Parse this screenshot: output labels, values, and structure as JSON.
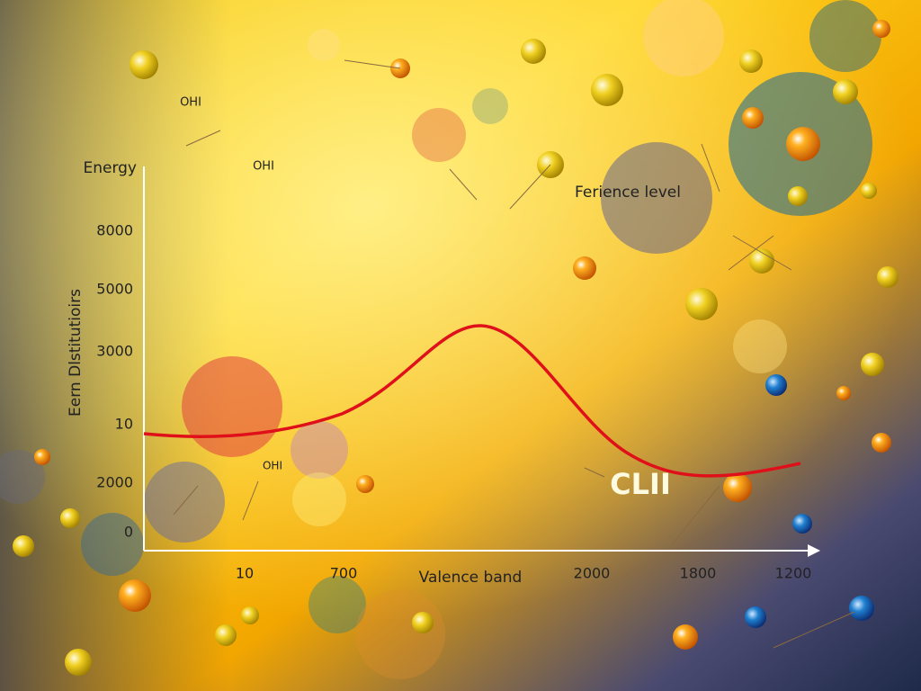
{
  "labels": {
    "axis_title": "Energy",
    "vertical_title": "Eern Dlstitutioirs",
    "fermi": "Ferience level",
    "valence": "Valence band",
    "formula": "CLII",
    "molecules": [
      "OHI",
      "OHI",
      "OHI"
    ]
  },
  "y_axis_labels": [
    8000,
    5000,
    3000,
    10,
    2000,
    0
  ],
  "x_axis_labels": [
    10,
    700,
    2000,
    1800,
    1200
  ]
}
